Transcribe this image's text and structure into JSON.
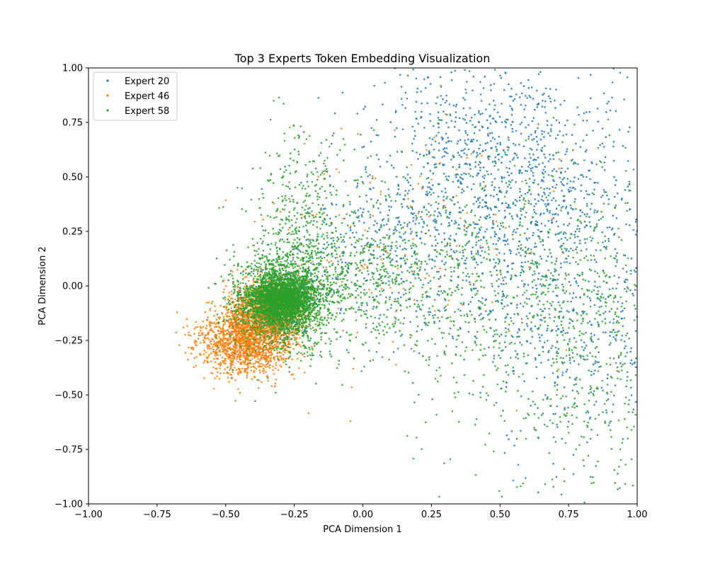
{
  "chart_data": {
    "type": "scatter",
    "title": "Top 3 Experts Token Embedding Visualization",
    "xlabel": "PCA Dimension 1",
    "ylabel": "PCA Dimension 2",
    "xlim": [
      -1.0,
      1.0
    ],
    "ylim": [
      -1.0,
      1.0
    ],
    "x_ticks": [
      "−1.00",
      "−0.75",
      "−0.50",
      "−0.25",
      "0.00",
      "0.25",
      "0.50",
      "0.75",
      "1.00"
    ],
    "y_ticks": [
      "−1.00",
      "−0.75",
      "−0.50",
      "−0.25",
      "0.00",
      "0.25",
      "0.50",
      "0.75",
      "1.00"
    ],
    "grid": false,
    "legend_position": "top-left",
    "series": [
      {
        "name": "Expert 20",
        "color": "#1f77b4",
        "distribution": [
          {
            "cx": 0.42,
            "cy": 0.55,
            "sx": 0.22,
            "sy": 0.28,
            "n": 900
          },
          {
            "cx": 0.62,
            "cy": 0.2,
            "sx": 0.25,
            "sy": 0.35,
            "n": 600
          },
          {
            "cx": 0.8,
            "cy": -0.2,
            "sx": 0.15,
            "sy": 0.35,
            "n": 350
          },
          {
            "cx": 0.05,
            "cy": 0.15,
            "sx": 0.18,
            "sy": 0.18,
            "n": 300
          },
          {
            "cx": -0.28,
            "cy": -0.05,
            "sx": 0.06,
            "sy": 0.07,
            "n": 200
          }
        ]
      },
      {
        "name": "Expert 46",
        "color": "#ff7f0e",
        "distribution": [
          {
            "cx": -0.4,
            "cy": -0.22,
            "sx": 0.07,
            "sy": 0.09,
            "n": 1800
          },
          {
            "cx": -0.32,
            "cy": -0.1,
            "sx": 0.06,
            "sy": 0.07,
            "n": 900
          },
          {
            "cx": -0.52,
            "cy": -0.28,
            "sx": 0.06,
            "sy": 0.06,
            "n": 250
          },
          {
            "cx": 0.15,
            "cy": 0.2,
            "sx": 0.3,
            "sy": 0.3,
            "n": 150
          }
        ]
      },
      {
        "name": "Expert 58",
        "color": "#2ca02c",
        "distribution": [
          {
            "cx": -0.3,
            "cy": -0.07,
            "sx": 0.06,
            "sy": 0.06,
            "n": 2200
          },
          {
            "cx": -0.28,
            "cy": -0.05,
            "sx": 0.1,
            "sy": 0.12,
            "n": 1400
          },
          {
            "cx": -0.22,
            "cy": 0.3,
            "sx": 0.09,
            "sy": 0.22,
            "n": 400
          },
          {
            "cx": 0.05,
            "cy": 0.05,
            "sx": 0.15,
            "sy": 0.15,
            "n": 400
          },
          {
            "cx": 0.55,
            "cy": 0.0,
            "sx": 0.28,
            "sy": 0.35,
            "n": 800
          },
          {
            "cx": 0.85,
            "cy": -0.35,
            "sx": 0.12,
            "sy": 0.35,
            "n": 250
          }
        ]
      }
    ]
  }
}
